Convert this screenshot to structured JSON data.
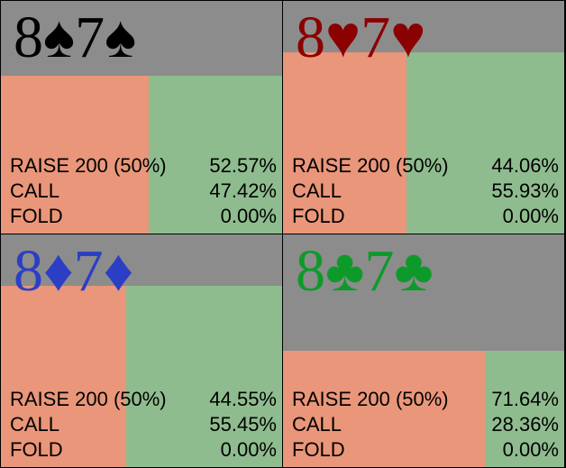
{
  "cells": [
    {
      "hand": "8♠7♠",
      "color": "#000000",
      "weight": 0.68,
      "actions": [
        {
          "label": "RAISE 200 (50%)",
          "value": 52.57,
          "value_label": "52.57%"
        },
        {
          "label": "CALL",
          "value": 47.42,
          "value_label": "47.42%"
        },
        {
          "label": "FOLD",
          "value": 0,
          "value_label": "0.00%"
        }
      ]
    },
    {
      "hand": "8♥7♥",
      "color": "#8b0000",
      "weight": 0.78,
      "actions": [
        {
          "label": "RAISE 200 (50%)",
          "value": 44.06,
          "value_label": "44.06%"
        },
        {
          "label": "CALL",
          "value": 55.93,
          "value_label": "55.93%"
        },
        {
          "label": "FOLD",
          "value": 0,
          "value_label": "0.00%"
        }
      ]
    },
    {
      "hand": "8♦7♦",
      "color": "#2b3fc4",
      "weight": 0.78,
      "actions": [
        {
          "label": "RAISE 200 (50%)",
          "value": 44.55,
          "value_label": "44.55%"
        },
        {
          "label": "CALL",
          "value": 55.45,
          "value_label": "55.45%"
        },
        {
          "label": "FOLD",
          "value": 0,
          "value_label": "0.00%"
        }
      ]
    },
    {
      "hand": "8♣7♣",
      "color": "#0e9a2a",
      "weight": 0.5,
      "actions": [
        {
          "label": "RAISE 200 (50%)",
          "value": 71.64,
          "value_label": "71.64%"
        },
        {
          "label": "CALL",
          "value": 28.36,
          "value_label": "28.36%"
        },
        {
          "label": "FOLD",
          "value": 0,
          "value_label": "0.00%"
        }
      ]
    }
  ]
}
